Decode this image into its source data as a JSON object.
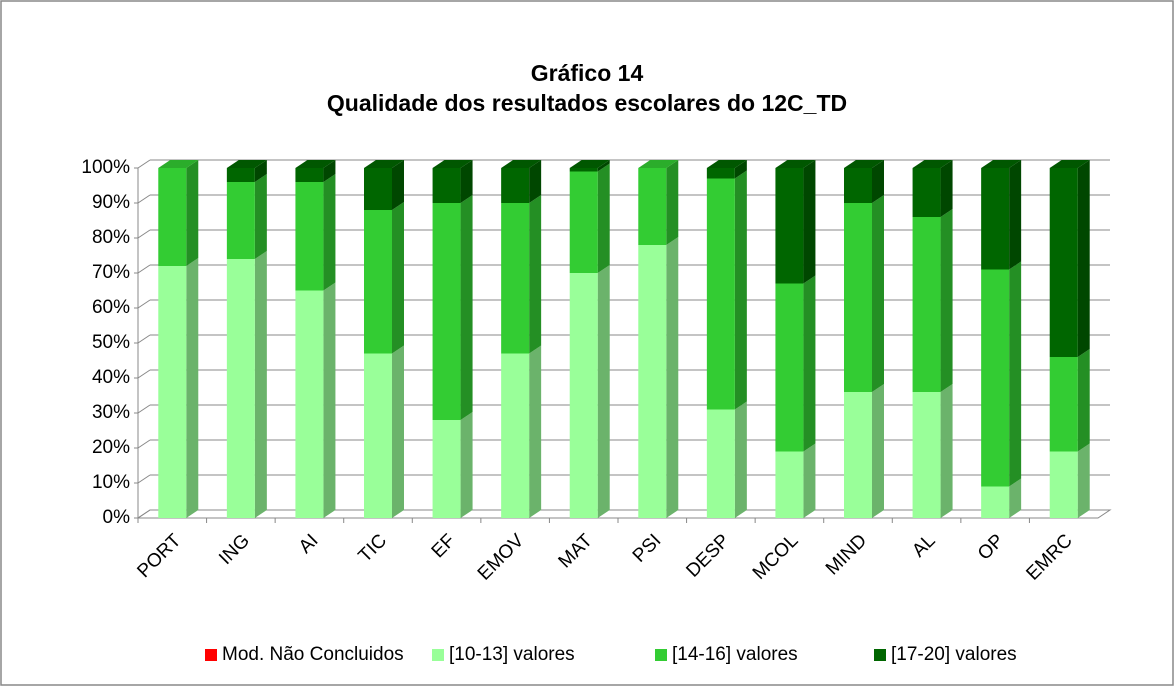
{
  "chart_data": {
    "type": "bar",
    "stacked": true,
    "title": "Gráfico 14",
    "subtitle": "Qualidade dos resultados escolares  do 12C_TD",
    "categories": [
      "PORT",
      "ING",
      "AI",
      "TIC",
      "EF",
      "EMOV",
      "MAT",
      "PSI",
      "DESP",
      "MCOL",
      "MIND",
      "AL",
      "OP",
      "EMRC"
    ],
    "series": [
      {
        "name": "Mod. Não Concluidos",
        "color": "#ff0000",
        "values": [
          0,
          0,
          0,
          0,
          0,
          0,
          0,
          0,
          0,
          0,
          0,
          0,
          0,
          0
        ]
      },
      {
        "name": "[10-13] valores",
        "color": "#99ff99",
        "values": [
          72,
          74,
          65,
          47,
          28,
          47,
          70,
          78,
          31,
          19,
          36,
          36,
          9,
          19
        ]
      },
      {
        "name": "[14-16] valores",
        "color": "#33cc33",
        "values": [
          28,
          22,
          31,
          41,
          62,
          43,
          29,
          22,
          66,
          48,
          54,
          50,
          62,
          27
        ]
      },
      {
        "name": "[17-20] valores",
        "color": "#006600",
        "values": [
          0,
          4,
          4,
          12,
          10,
          10,
          1,
          0,
          3,
          33,
          10,
          14,
          29,
          54
        ]
      }
    ],
    "ylim": [
      0,
      100
    ],
    "yticks": [
      {
        "value": 0,
        "label": "0%"
      },
      {
        "value": 10,
        "label": "10%"
      },
      {
        "value": 20,
        "label": "20%"
      },
      {
        "value": 30,
        "label": "30%"
      },
      {
        "value": 40,
        "label": "40%"
      },
      {
        "value": 50,
        "label": "50%"
      },
      {
        "value": 60,
        "label": "60%"
      },
      {
        "value": 70,
        "label": "70%"
      },
      {
        "value": 80,
        "label": "80%"
      },
      {
        "value": 90,
        "label": "90%"
      },
      {
        "value": 100,
        "label": "100%"
      }
    ],
    "grid": true,
    "legend": "bottom"
  }
}
